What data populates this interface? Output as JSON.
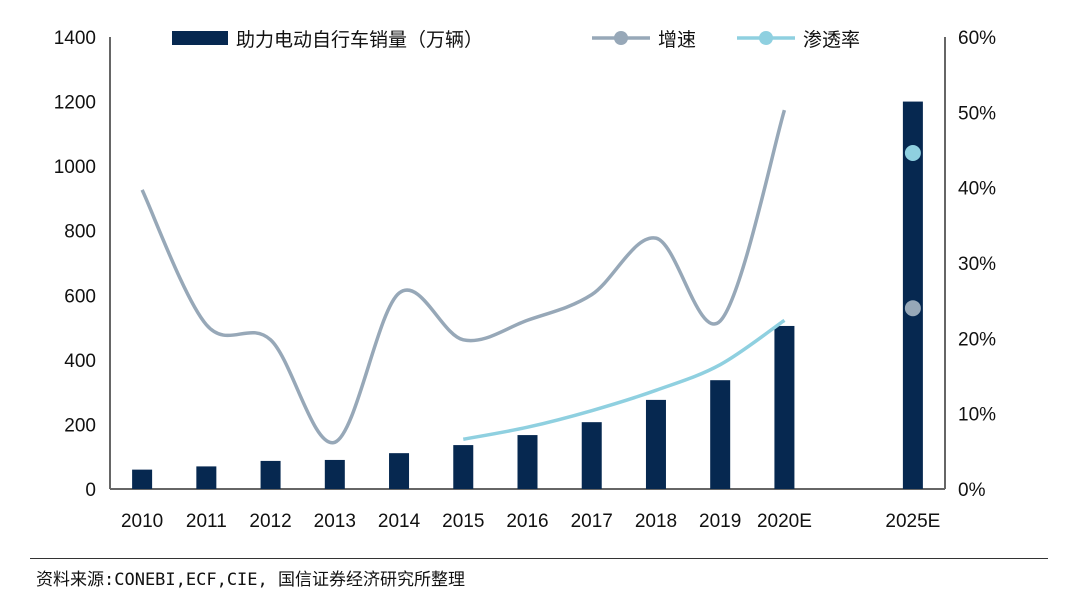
{
  "chart_data": {
    "type": "bar",
    "categories": [
      "2010",
      "2011",
      "2012",
      "2013",
      "2014",
      "2015",
      "2016",
      "2017",
      "2018",
      "2019",
      "2020E",
      "",
      "2025E"
    ],
    "series": [
      {
        "name": "助力电动自行车销量（万辆）",
        "type": "bar",
        "axis": "left",
        "color": "#062850",
        "values": [
          60,
          70,
          87,
          90,
          111,
          136,
          167,
          207,
          276,
          337,
          505,
          null,
          1200
        ]
      },
      {
        "name": "增速",
        "type": "line",
        "axis": "right",
        "color": "#97A8B8",
        "values": [
          39.7,
          21.8,
          19.8,
          6.2,
          26.0,
          19.8,
          22.4,
          25.8,
          33.3,
          22.3,
          50.3,
          null,
          24.0
        ]
      },
      {
        "name": "渗透率",
        "type": "line",
        "axis": "right",
        "color": "#8FD0E0",
        "values": [
          null,
          null,
          null,
          null,
          null,
          6.6,
          8.2,
          10.4,
          13.1,
          16.5,
          22.4,
          null,
          44.6
        ]
      }
    ],
    "y_left": {
      "range": [
        0,
        1400
      ],
      "ticks": [
        "0",
        "200",
        "400",
        "600",
        "800",
        "1000",
        "1200",
        "1400"
      ]
    },
    "y_right": {
      "range": [
        0,
        60
      ],
      "ticks": [
        "0%",
        "10%",
        "20%",
        "30%",
        "40%",
        "50%",
        "60%"
      ]
    },
    "legend_position": "top",
    "grid": false
  },
  "source": "资料来源:CONEBI,ECF,CIE, 国信证券经济研究所整理"
}
